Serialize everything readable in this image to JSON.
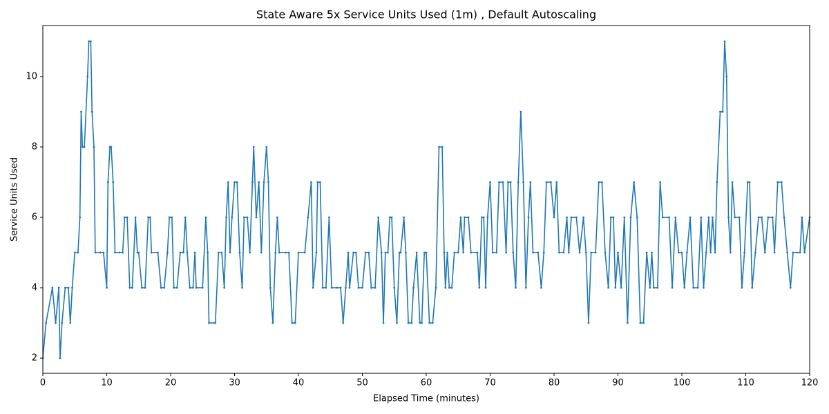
{
  "chart_data": {
    "type": "line",
    "title": "State Aware 5x Service Units Used (1m) , Default Autoscaling",
    "x_label": "Elapsed Time (minutes)",
    "y_label": "Service Units Used",
    "xlim": [
      0,
      120
    ],
    "ylim": [
      1.57,
      11.45
    ],
    "xticks": [
      0,
      10,
      20,
      30,
      40,
      50,
      60,
      70,
      80,
      90,
      100,
      110,
      120
    ],
    "yticks": [
      2,
      4,
      6,
      8,
      10
    ],
    "series": [
      {
        "name": "Service Units Used",
        "color": "#1f77b4",
        "x": [
          0,
          0.5,
          1.5,
          2,
          2.5,
          2.7,
          3,
          3.5,
          4,
          4.3,
          4.6,
          5,
          5.5,
          5.8,
          6,
          6.2,
          6.5,
          7,
          7.2,
          7.5,
          7.7,
          8,
          8.2,
          9,
          9.5,
          10,
          10.2,
          10.5,
          10.7,
          11,
          11.3,
          12,
          12.5,
          12.8,
          13.2,
          13.6,
          14,
          14.5,
          14.8,
          15,
          15.5,
          16,
          16.5,
          16.8,
          17,
          18,
          18.5,
          19,
          19.5,
          19.8,
          20.2,
          20.5,
          21,
          21.5,
          22,
          22.3,
          22.6,
          23,
          23.5,
          23.8,
          24,
          25,
          25.5,
          25.8,
          26,
          27,
          27.5,
          28,
          28.4,
          28.7,
          29,
          29.3,
          29.6,
          30,
          30.4,
          30.8,
          31.2,
          31.5,
          32,
          32.4,
          32.8,
          33,
          33.4,
          33.8,
          34.2,
          34.6,
          35,
          35.3,
          35.6,
          36,
          36.4,
          36.7,
          37,
          38,
          38.5,
          39,
          39.5,
          40,
          41,
          41.5,
          42,
          42.3,
          42.8,
          43,
          43.4,
          43.8,
          44.3,
          44.8,
          45.2,
          46,
          46.6,
          47,
          47.4,
          47.8,
          48,
          48.6,
          49,
          49.4,
          50,
          50.5,
          51,
          51.4,
          52,
          52.5,
          53,
          53.3,
          53.6,
          54,
          54.3,
          54.6,
          55,
          55.4,
          55.8,
          56,
          56.5,
          56.8,
          57.2,
          57.7,
          58,
          58.5,
          59,
          59.3,
          59.7,
          60,
          60.5,
          61,
          61.5,
          62,
          62.5,
          62.8,
          63,
          63.3,
          63.6,
          64,
          64.4,
          65,
          65.4,
          65.8,
          66,
          66.6,
          67,
          68,
          68.3,
          68.7,
          69,
          69.3,
          69.6,
          70,
          70.4,
          71,
          71.4,
          72,
          72.5,
          72.8,
          73.2,
          73.6,
          74,
          74.4,
          74.8,
          75.2,
          75.6,
          76,
          76.3,
          76.7,
          77.5,
          78,
          78.4,
          78.8,
          79.5,
          80,
          80.4,
          80.8,
          81.5,
          82,
          82.3,
          82.7,
          83.5,
          84,
          84.6,
          85,
          85.4,
          85.8,
          86.5,
          87,
          87.5,
          88,
          88.5,
          88.9,
          89.3,
          89.6,
          90,
          90.5,
          91,
          91.5,
          92,
          92.5,
          93,
          93.5,
          94,
          94.5,
          95,
          95.3,
          95.6,
          96.2,
          96.6,
          97,
          98,
          98.5,
          99,
          99.5,
          100,
          100.4,
          100.8,
          101.3,
          101.8,
          102.5,
          103,
          103.4,
          103.8,
          104.2,
          104.5,
          104.8,
          105.2,
          105.5,
          106,
          106.4,
          106.7,
          107,
          107.3,
          107.6,
          107.9,
          108.3,
          109,
          109.4,
          109.8,
          110.3,
          110.6,
          111,
          111.5,
          112,
          112.5,
          113,
          113.5,
          114.2,
          114.5,
          115,
          115.6,
          116,
          116.5,
          117,
          117.4,
          118,
          118.5,
          118.8,
          119.2,
          120
        ],
        "values": [
          2,
          3,
          4,
          3,
          4,
          2,
          3,
          4,
          4,
          3,
          4,
          5,
          5,
          6,
          9,
          8,
          8,
          10,
          11,
          11,
          9,
          8,
          5,
          5,
          5,
          4,
          7,
          8,
          8,
          7,
          5,
          5,
          5,
          6,
          6,
          4,
          4,
          6,
          5,
          5,
          4,
          4,
          6,
          6,
          5,
          5,
          4,
          4,
          5,
          6,
          6,
          4,
          4,
          5,
          5,
          6,
          5,
          4,
          4,
          5,
          4,
          4,
          6,
          5,
          3,
          3,
          5,
          5,
          4,
          6,
          7,
          5,
          6,
          7,
          7,
          5,
          4,
          6,
          6,
          5,
          7,
          8,
          6,
          7,
          5,
          7,
          8,
          7,
          4,
          3,
          5,
          6,
          5,
          5,
          5,
          3,
          3,
          5,
          5,
          6,
          7,
          4,
          5,
          7,
          7,
          4,
          4,
          6,
          4,
          4,
          4,
          3,
          4,
          5,
          4,
          5,
          5,
          4,
          4,
          5,
          5,
          4,
          4,
          6,
          5,
          3,
          5,
          5,
          6,
          6,
          4,
          3,
          5,
          5,
          6,
          5,
          3,
          3,
          4,
          5,
          3,
          3,
          5,
          5,
          3,
          3,
          4,
          8,
          8,
          5,
          4,
          5,
          4,
          4,
          5,
          5,
          6,
          5,
          6,
          6,
          5,
          5,
          4,
          6,
          6,
          4,
          6,
          7,
          5,
          5,
          7,
          7,
          5,
          7,
          7,
          5,
          4,
          7,
          9,
          7,
          4,
          6,
          7,
          5,
          5,
          4,
          5,
          7,
          7,
          6,
          7,
          5,
          5,
          6,
          5,
          6,
          6,
          5,
          6,
          5,
          3,
          5,
          5,
          7,
          7,
          5,
          4,
          6,
          6,
          4,
          5,
          4,
          6,
          3,
          6,
          7,
          6,
          3,
          3,
          5,
          4,
          5,
          4,
          4,
          7,
          6,
          6,
          4,
          6,
          5,
          5,
          4,
          5,
          6,
          4,
          4,
          6,
          4,
          5,
          6,
          5,
          6,
          5,
          7,
          9,
          9,
          11,
          10,
          6,
          5,
          7,
          6,
          6,
          4,
          5,
          7,
          7,
          4,
          5,
          6,
          6,
          5,
          6,
          6,
          5,
          7,
          7,
          6,
          5,
          4,
          5,
          5,
          5,
          6,
          5,
          6
        ]
      }
    ]
  }
}
